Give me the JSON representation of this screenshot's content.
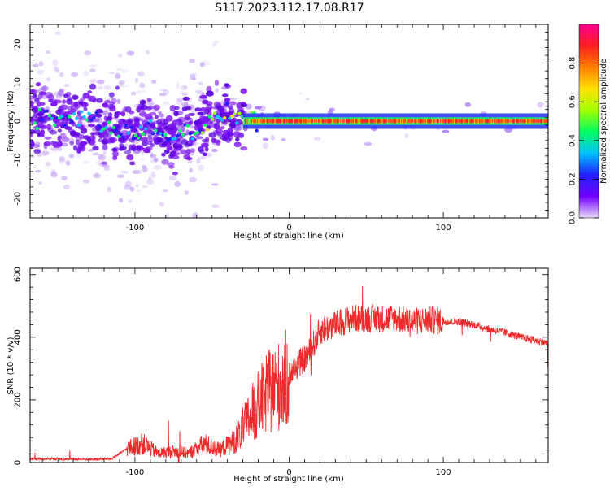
{
  "title": "S117.2023.112.17.08.R17",
  "chart_data": [
    {
      "type": "heatmap",
      "xlabel": "Height of straight line (km)",
      "ylabel": "Frequency (Hz)",
      "xlim": [
        -168,
        168
      ],
      "ylim": [
        -25,
        25
      ],
      "xticks": [
        -100,
        0,
        100
      ],
      "yticks": [
        -20,
        -10,
        0,
        10,
        20
      ],
      "colorbar": {
        "label": "Normalized spectral amplitude",
        "range": [
          0,
          1
        ],
        "ticks": [
          "0.0",
          "0.2",
          "0.4",
          "0.6",
          "0.8"
        ],
        "colormap": [
          "#e8d8f8",
          "#7000ff",
          "#2020ff",
          "#00c0ff",
          "#00ff60",
          "#a0ff00",
          "#ffe000",
          "#ff8000",
          "#ff2020",
          "#ff0090"
        ]
      },
      "ridge": {
        "x": [
          -168,
          -150,
          -130,
          -110,
          -100,
          -90,
          -80,
          -70,
          -60,
          -50,
          -40,
          -30,
          -20,
          -10,
          0,
          10,
          20,
          40,
          60,
          80,
          100,
          120,
          140,
          168
        ],
        "y": [
          1,
          0,
          1,
          -3,
          -3,
          -2,
          -4,
          -3,
          -2,
          0,
          2,
          1,
          0,
          0,
          -1,
          0,
          0,
          0,
          0,
          0,
          0,
          0,
          0,
          0
        ]
      }
    },
    {
      "type": "line",
      "xlabel": "Height of straight line (km)",
      "ylabel": "SNR (10 * v/v)",
      "xlim": [
        -168,
        168
      ],
      "ylim": [
        0,
        620
      ],
      "xticks": [
        -100,
        0,
        100
      ],
      "yticks": [
        0,
        200,
        400,
        600
      ],
      "color": "#ee2a2a",
      "envelope": {
        "x": [
          -168,
          -150,
          -130,
          -115,
          -105,
          -95,
          -85,
          -75,
          -65,
          -55,
          -45,
          -35,
          -25,
          -15,
          -5,
          0,
          5,
          12,
          20,
          30,
          40,
          50,
          60,
          70,
          80,
          90,
          100,
          110,
          120,
          130,
          140,
          150,
          160,
          168
        ],
        "y": [
          12,
          12,
          10,
          12,
          45,
          60,
          30,
          35,
          30,
          60,
          40,
          70,
          150,
          220,
          250,
          280,
          310,
          340,
          420,
          440,
          460,
          460,
          460,
          460,
          450,
          455,
          450,
          450,
          440,
          425,
          415,
          400,
          390,
          380
        ]
      }
    }
  ]
}
